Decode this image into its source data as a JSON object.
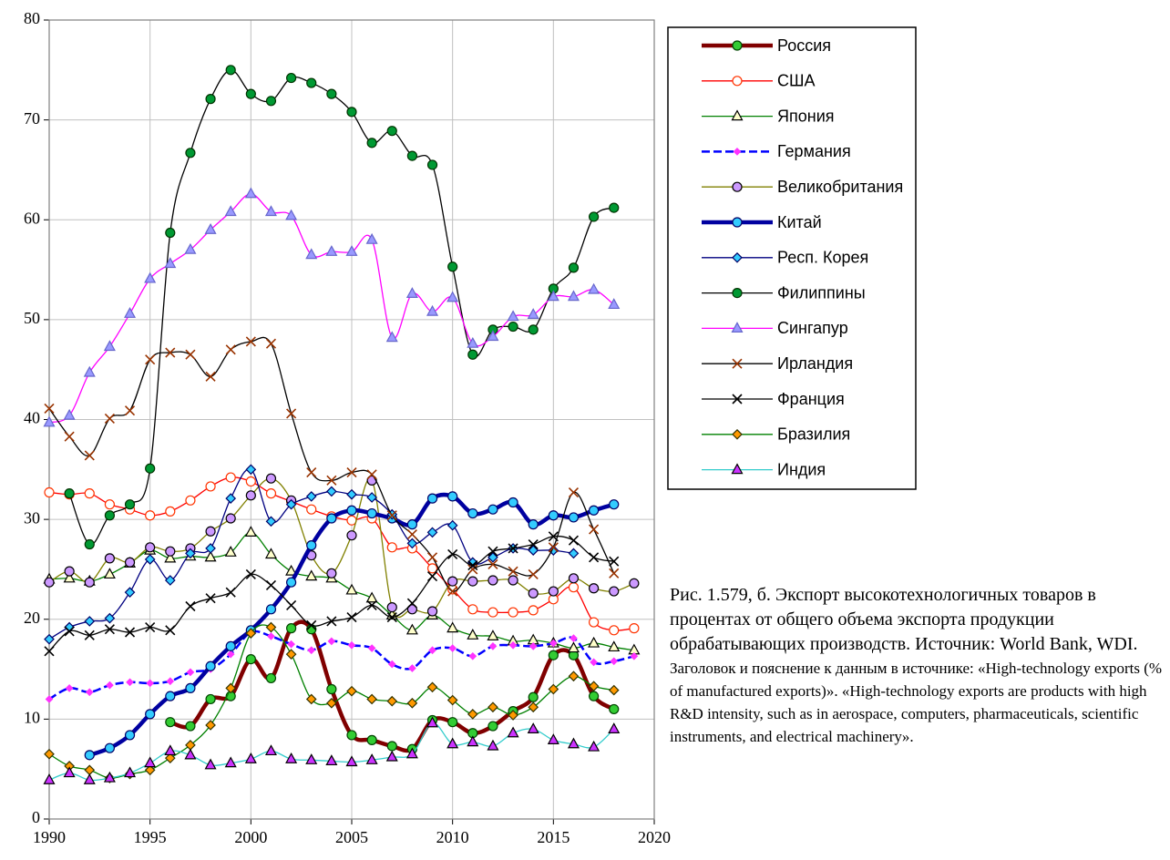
{
  "chart_data": {
    "type": "line",
    "x": [
      1990,
      1991,
      1992,
      1993,
      1994,
      1995,
      1996,
      1997,
      1998,
      1999,
      2000,
      2001,
      2002,
      2003,
      2004,
      2005,
      2006,
      2007,
      2008,
      2009,
      2010,
      2011,
      2012,
      2013,
      2014,
      2015,
      2016,
      2017,
      2018,
      2019
    ],
    "xlim": [
      1990,
      2020
    ],
    "xticks": [
      1990,
      1995,
      2000,
      2005,
      2010,
      2015,
      2020
    ],
    "ylim": [
      0,
      80
    ],
    "yticks": [
      0,
      10,
      20,
      30,
      40,
      50,
      60,
      70,
      80
    ],
    "grid": true,
    "series": [
      {
        "name": "Россия",
        "color": "#800000",
        "thick": true,
        "marker": "circle",
        "marker_fill": "#33cc33",
        "marker_stroke": "#004400",
        "values": [
          null,
          null,
          null,
          null,
          null,
          null,
          9.7,
          9.3,
          12.0,
          12.3,
          16.0,
          14.1,
          19.1,
          19.0,
          13.0,
          8.4,
          7.9,
          7.3,
          7.0,
          9.9,
          9.7,
          8.6,
          9.3,
          10.8,
          12.2,
          16.4,
          16.4,
          12.3,
          11.0,
          null
        ]
      },
      {
        "name": "США",
        "color": "#ff0000",
        "marker": "circle",
        "marker_fill": "#ffffff",
        "marker_stroke": "#ff3300",
        "values": [
          32.7,
          32.5,
          32.6,
          31.5,
          31.0,
          30.4,
          30.8,
          31.9,
          33.3,
          34.2,
          33.8,
          32.6,
          31.8,
          31.0,
          30.3,
          29.9,
          30.1,
          27.2,
          27.1,
          25.1,
          23.0,
          21.0,
          20.7,
          20.7,
          20.9,
          22.0,
          23.2,
          19.7,
          18.9,
          19.1
        ]
      },
      {
        "name": "Япония",
        "color": "#008000",
        "marker": "triangle",
        "marker_fill": "#ffffcc",
        "marker_stroke": "#000000",
        "values": [
          24.0,
          24.1,
          23.8,
          24.5,
          25.6,
          26.9,
          26.1,
          26.3,
          26.2,
          26.7,
          28.7,
          26.5,
          24.8,
          24.3,
          24.1,
          22.9,
          22.1,
          20.4,
          18.9,
          20.4,
          19.1,
          18.4,
          18.3,
          17.8,
          17.9,
          17.6,
          17.1,
          17.6,
          17.2,
          16.9
        ]
      },
      {
        "name": "Германия",
        "color": "#0000ff",
        "dashed": true,
        "marker": "diamond",
        "marker_fill": "#ff33ff",
        "marker_stroke": "#ff33ff",
        "values": [
          12.0,
          13.1,
          12.7,
          13.4,
          13.7,
          13.6,
          13.8,
          14.7,
          15.0,
          16.5,
          18.7,
          18.3,
          17.5,
          16.9,
          17.8,
          17.4,
          17.1,
          15.5,
          15.1,
          16.9,
          17.1,
          16.3,
          17.3,
          17.4,
          17.3,
          17.6,
          18.1,
          15.7,
          15.8,
          16.3
        ]
      },
      {
        "name": "Великобритания",
        "color": "#808000",
        "marker": "circle",
        "marker_fill": "#cc99ff",
        "marker_stroke": "#000000",
        "values": [
          23.7,
          24.8,
          23.7,
          26.1,
          25.7,
          27.2,
          26.8,
          27.1,
          28.8,
          30.1,
          32.4,
          34.1,
          31.9,
          26.4,
          24.6,
          28.4,
          33.9,
          21.2,
          21.0,
          20.8,
          23.8,
          23.8,
          23.9,
          23.9,
          22.6,
          22.8,
          24.1,
          23.1,
          22.8,
          23.6
        ]
      },
      {
        "name": "Китай",
        "color": "#0000a0",
        "thick": true,
        "marker": "circle",
        "marker_fill": "#33ccff",
        "marker_stroke": "#000066",
        "values": [
          null,
          null,
          6.4,
          7.1,
          8.4,
          10.5,
          12.3,
          13.1,
          15.3,
          17.3,
          18.9,
          21.0,
          23.7,
          27.4,
          30.1,
          30.9,
          30.6,
          30.1,
          29.5,
          32.1,
          32.3,
          30.6,
          31.0,
          31.7,
          29.5,
          30.4,
          30.2,
          30.9,
          31.5,
          null
        ]
      },
      {
        "name": "Респ. Корея",
        "color": "#000080",
        "marker": "diamond",
        "marker_fill": "#33ccff",
        "marker_stroke": "#000066",
        "values": [
          18.0,
          19.2,
          19.8,
          20.1,
          22.7,
          26.0,
          23.9,
          26.6,
          27.1,
          32.1,
          35.0,
          29.8,
          31.5,
          32.3,
          32.8,
          32.5,
          32.2,
          30.5,
          27.6,
          28.7,
          29.4,
          25.7,
          26.2,
          27.1,
          26.9,
          26.9,
          26.6,
          null,
          null,
          null
        ]
      },
      {
        "name": "Филиппины",
        "color": "#000000",
        "marker": "circle",
        "marker_fill": "#009933",
        "marker_stroke": "#003300",
        "values": [
          null,
          32.6,
          27.5,
          30.4,
          31.5,
          35.1,
          58.7,
          66.7,
          72.1,
          75.0,
          72.6,
          71.9,
          74.2,
          73.7,
          72.6,
          70.8,
          67.7,
          68.9,
          66.4,
          65.5,
          55.3,
          46.5,
          49.0,
          49.3,
          49.0,
          53.1,
          55.2,
          60.3,
          61.2,
          null
        ]
      },
      {
        "name": "Сингапур",
        "color": "#ff00ff",
        "marker": "triangle",
        "marker_fill": "#9999ff",
        "marker_stroke": "#6666cc",
        "values": [
          39.7,
          40.4,
          44.7,
          47.3,
          50.6,
          54.1,
          55.6,
          57.0,
          59.0,
          60.8,
          62.6,
          60.8,
          60.4,
          56.5,
          56.8,
          56.8,
          58.0,
          48.2,
          52.6,
          50.8,
          52.2,
          47.6,
          48.3,
          50.3,
          50.5,
          52.3,
          52.3,
          53.0,
          51.5,
          null
        ]
      },
      {
        "name": "Ирландия",
        "color": "#000000",
        "marker": "x",
        "marker_fill": "none",
        "marker_stroke": "#993300",
        "values": [
          41.1,
          38.3,
          36.4,
          40.1,
          40.9,
          46.0,
          46.7,
          46.5,
          44.3,
          47.0,
          47.8,
          47.6,
          40.6,
          34.7,
          33.9,
          34.7,
          34.5,
          30.4,
          28.5,
          26.2,
          22.8,
          25.0,
          25.5,
          24.8,
          24.5,
          27.2,
          32.7,
          29.0,
          24.6,
          null
        ]
      },
      {
        "name": "Франция",
        "color": "#000000",
        "marker": "x",
        "marker_fill": "none",
        "marker_stroke": "#000000",
        "values": [
          16.8,
          18.8,
          18.4,
          19.0,
          18.7,
          19.2,
          18.9,
          21.3,
          22.1,
          22.7,
          24.5,
          23.4,
          21.4,
          19.4,
          19.8,
          20.2,
          21.4,
          20.2,
          21.6,
          24.3,
          26.5,
          25.4,
          26.8,
          27.1,
          27.5,
          28.3,
          27.9,
          26.2,
          25.8,
          null
        ]
      },
      {
        "name": "Бразилия",
        "color": "#008000",
        "marker": "diamond",
        "marker_fill": "#ff9900",
        "marker_stroke": "#333300",
        "values": [
          6.5,
          5.3,
          4.9,
          4.1,
          4.5,
          4.9,
          6.1,
          7.4,
          9.4,
          13.1,
          18.6,
          19.2,
          16.5,
          12.0,
          11.6,
          12.8,
          12.0,
          11.8,
          11.6,
          13.2,
          11.9,
          10.5,
          11.2,
          10.4,
          11.2,
          13.0,
          14.3,
          13.3,
          12.9,
          null
        ]
      },
      {
        "name": "Индия",
        "color": "#33cccc",
        "marker": "triangle",
        "marker_fill": "#cc33ff",
        "marker_stroke": "#000000",
        "values": [
          3.9,
          4.6,
          3.9,
          4.1,
          4.6,
          5.6,
          6.8,
          6.4,
          5.4,
          5.6,
          6.0,
          6.8,
          6.0,
          5.9,
          5.8,
          5.7,
          5.9,
          6.2,
          6.5,
          9.6,
          7.5,
          7.7,
          7.3,
          8.6,
          9.0,
          7.9,
          7.5,
          7.2,
          9.0,
          null
        ]
      }
    ],
    "caption": "Рис. 1.579, б. Экспорт высокотехнологичных товаров в процентах от общего объема экспорта продукции обрабатывающих производств. Источник: World Bank, WDI.",
    "note": "Заголовок и пояснение к данным в источнике: «High-technology exports (% of manufactured exports)». «High-technology exports are products with high R&D intensity, such as in aerospace, computers, pharmaceuticals, scientific instruments, and electrical machinery»."
  }
}
